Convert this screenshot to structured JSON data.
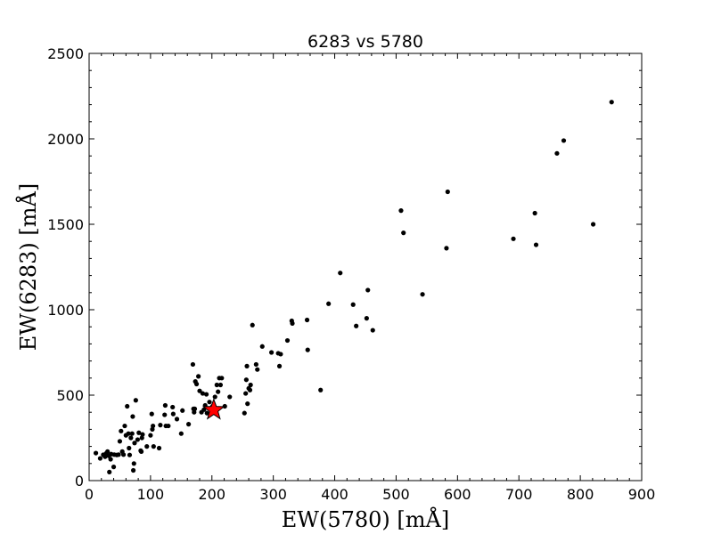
{
  "chart_data": {
    "type": "scatter",
    "title": "6283 vs 5780",
    "xlabel": "EW(5780) [mÅ]",
    "ylabel": "EW(6283) [mÅ]",
    "xlim": [
      0,
      900
    ],
    "ylim": [
      0,
      2500
    ],
    "x_ticks": [
      "0",
      "100",
      "200",
      "300",
      "400",
      "500",
      "600",
      "700",
      "800",
      "900"
    ],
    "y_ticks": [
      "0",
      "500",
      "1000",
      "1500",
      "2000",
      "2500"
    ],
    "grid": false,
    "colors": {
      "points": "#000000",
      "highlight_fill": "#ff0000",
      "highlight_stroke": "#000000"
    },
    "highlight": {
      "x": 203,
      "y": 413,
      "marker": "star"
    },
    "series": [
      {
        "values": [
          [
            11,
            161
          ],
          [
            18,
            130
          ],
          [
            23,
            151
          ],
          [
            26,
            140
          ],
          [
            28,
            160
          ],
          [
            30,
            170
          ],
          [
            32,
            145
          ],
          [
            33,
            50
          ],
          [
            35,
            125
          ],
          [
            36,
            155
          ],
          [
            40,
            80
          ],
          [
            41,
            152
          ],
          [
            45,
            150
          ],
          [
            48,
            152
          ],
          [
            50,
            230
          ],
          [
            52,
            290
          ],
          [
            54,
            170
          ],
          [
            56,
            152
          ],
          [
            58,
            320
          ],
          [
            60,
            265
          ],
          [
            62,
            435
          ],
          [
            64,
            275
          ],
          [
            65,
            190
          ],
          [
            66,
            150
          ],
          [
            68,
            250
          ],
          [
            70,
            275
          ],
          [
            71,
            375
          ],
          [
            72,
            60
          ],
          [
            73,
            100
          ],
          [
            74,
            220
          ],
          [
            76,
            470
          ],
          [
            79,
            240
          ],
          [
            81,
            280
          ],
          [
            84,
            175
          ],
          [
            85,
            170
          ],
          [
            86,
            250
          ],
          [
            87,
            270
          ],
          [
            94,
            200
          ],
          [
            100,
            265
          ],
          [
            102,
            390
          ],
          [
            103,
            300
          ],
          [
            104,
            320
          ],
          [
            105,
            200
          ],
          [
            114,
            190
          ],
          [
            116,
            325
          ],
          [
            123,
            385
          ],
          [
            124,
            440
          ],
          [
            125,
            320
          ],
          [
            129,
            320
          ],
          [
            136,
            430
          ],
          [
            137,
            390
          ],
          [
            143,
            360
          ],
          [
            150,
            275
          ],
          [
            152,
            410
          ],
          [
            162,
            330
          ],
          [
            169,
            680
          ],
          [
            170,
            420
          ],
          [
            171,
            400
          ],
          [
            172,
            420
          ],
          [
            173,
            580
          ],
          [
            175,
            565
          ],
          [
            178,
            610
          ],
          [
            180,
            525
          ],
          [
            183,
            400
          ],
          [
            185,
            510
          ],
          [
            187,
            415
          ],
          [
            189,
            440
          ],
          [
            191,
            505
          ],
          [
            192,
            395
          ],
          [
            196,
            460
          ],
          [
            199,
            420
          ],
          [
            201,
            435
          ],
          [
            205,
            490
          ],
          [
            208,
            560
          ],
          [
            210,
            520
          ],
          [
            212,
            600
          ],
          [
            214,
            560
          ],
          [
            216,
            600
          ],
          [
            221,
            435
          ],
          [
            229,
            490
          ],
          [
            253,
            395
          ],
          [
            255,
            510
          ],
          [
            256,
            590
          ],
          [
            257,
            670
          ],
          [
            258,
            450
          ],
          [
            260,
            540
          ],
          [
            262,
            530
          ],
          [
            263,
            560
          ],
          [
            266,
            910
          ],
          [
            272,
            680
          ],
          [
            274,
            650
          ],
          [
            282,
            785
          ],
          [
            297,
            750
          ],
          [
            308,
            745
          ],
          [
            310,
            670
          ],
          [
            312,
            740
          ],
          [
            323,
            820
          ],
          [
            330,
            935
          ],
          [
            331,
            920
          ],
          [
            355,
            940
          ],
          [
            356,
            765
          ],
          [
            377,
            530
          ],
          [
            390,
            1035
          ],
          [
            409,
            1215
          ],
          [
            430,
            1030
          ],
          [
            435,
            905
          ],
          [
            452,
            950
          ],
          [
            454,
            1115
          ],
          [
            462,
            880
          ],
          [
            508,
            1580
          ],
          [
            512,
            1450
          ],
          [
            543,
            1090
          ],
          [
            582,
            1360
          ],
          [
            584,
            1690
          ],
          [
            691,
            1415
          ],
          [
            726,
            1565
          ],
          [
            728,
            1380
          ],
          [
            762,
            1915
          ],
          [
            773,
            1990
          ],
          [
            821,
            1500
          ],
          [
            851,
            2215
          ]
        ]
      }
    ]
  }
}
